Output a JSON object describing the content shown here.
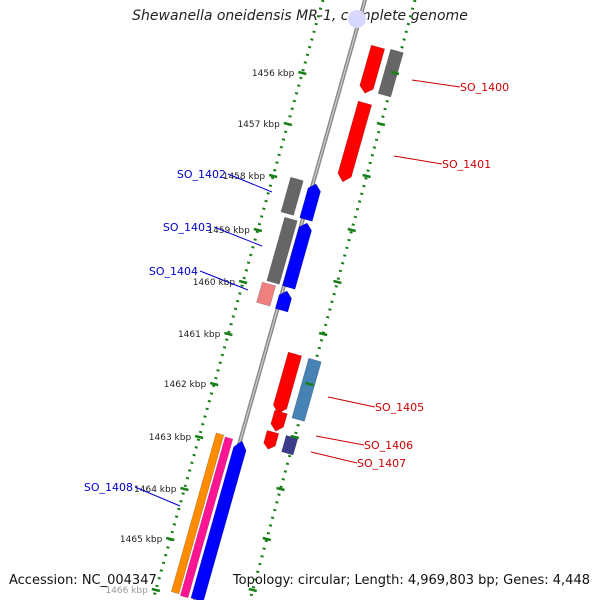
{
  "title": "Shewanella oneidensis MR-1, complete genome",
  "footer": {
    "accession": "Accession: NC_004347",
    "info": "Topology: circular; Length: 4,969,803 bp; Genes: 4,448"
  },
  "colors": {
    "red": "#ff0000",
    "gray": "#666666",
    "blue": "#0000ff",
    "steelblue": "#4682b4",
    "pink": "#f08080",
    "navy": "#3c3c8c",
    "orange": "#ff8c00",
    "magenta": "#ff1493",
    "label_red": "#cc0000",
    "label_blue": "#0000cc",
    "tick": "#1a7f1a",
    "backbone": "#888888"
  },
  "ticks": [
    {
      "label": "1456 kbp"
    },
    {
      "label": "1457 kbp"
    },
    {
      "label": "1458 kbp"
    },
    {
      "label": "1459 kbp"
    },
    {
      "label": "1460 kbp"
    },
    {
      "label": "1461 kbp"
    },
    {
      "label": "1462 kbp"
    },
    {
      "label": "1463 kbp"
    },
    {
      "label": "1464 kbp"
    },
    {
      "label": "1465 kbp"
    },
    {
      "label": "1466 kbp"
    }
  ],
  "gene_labels": [
    {
      "text": "SO_1400",
      "color": "label_red"
    },
    {
      "text": "SO_1401",
      "color": "label_red"
    },
    {
      "text": "SO_1402",
      "color": "label_blue"
    },
    {
      "text": "SO_1403",
      "color": "label_blue"
    },
    {
      "text": "SO_1404",
      "color": "label_blue"
    },
    {
      "text": "SO_1405",
      "color": "label_red"
    },
    {
      "text": "SO_1406",
      "color": "label_red"
    },
    {
      "text": "SO_1407",
      "color": "label_red"
    },
    {
      "text": "SO_1408",
      "color": "label_blue"
    }
  ]
}
